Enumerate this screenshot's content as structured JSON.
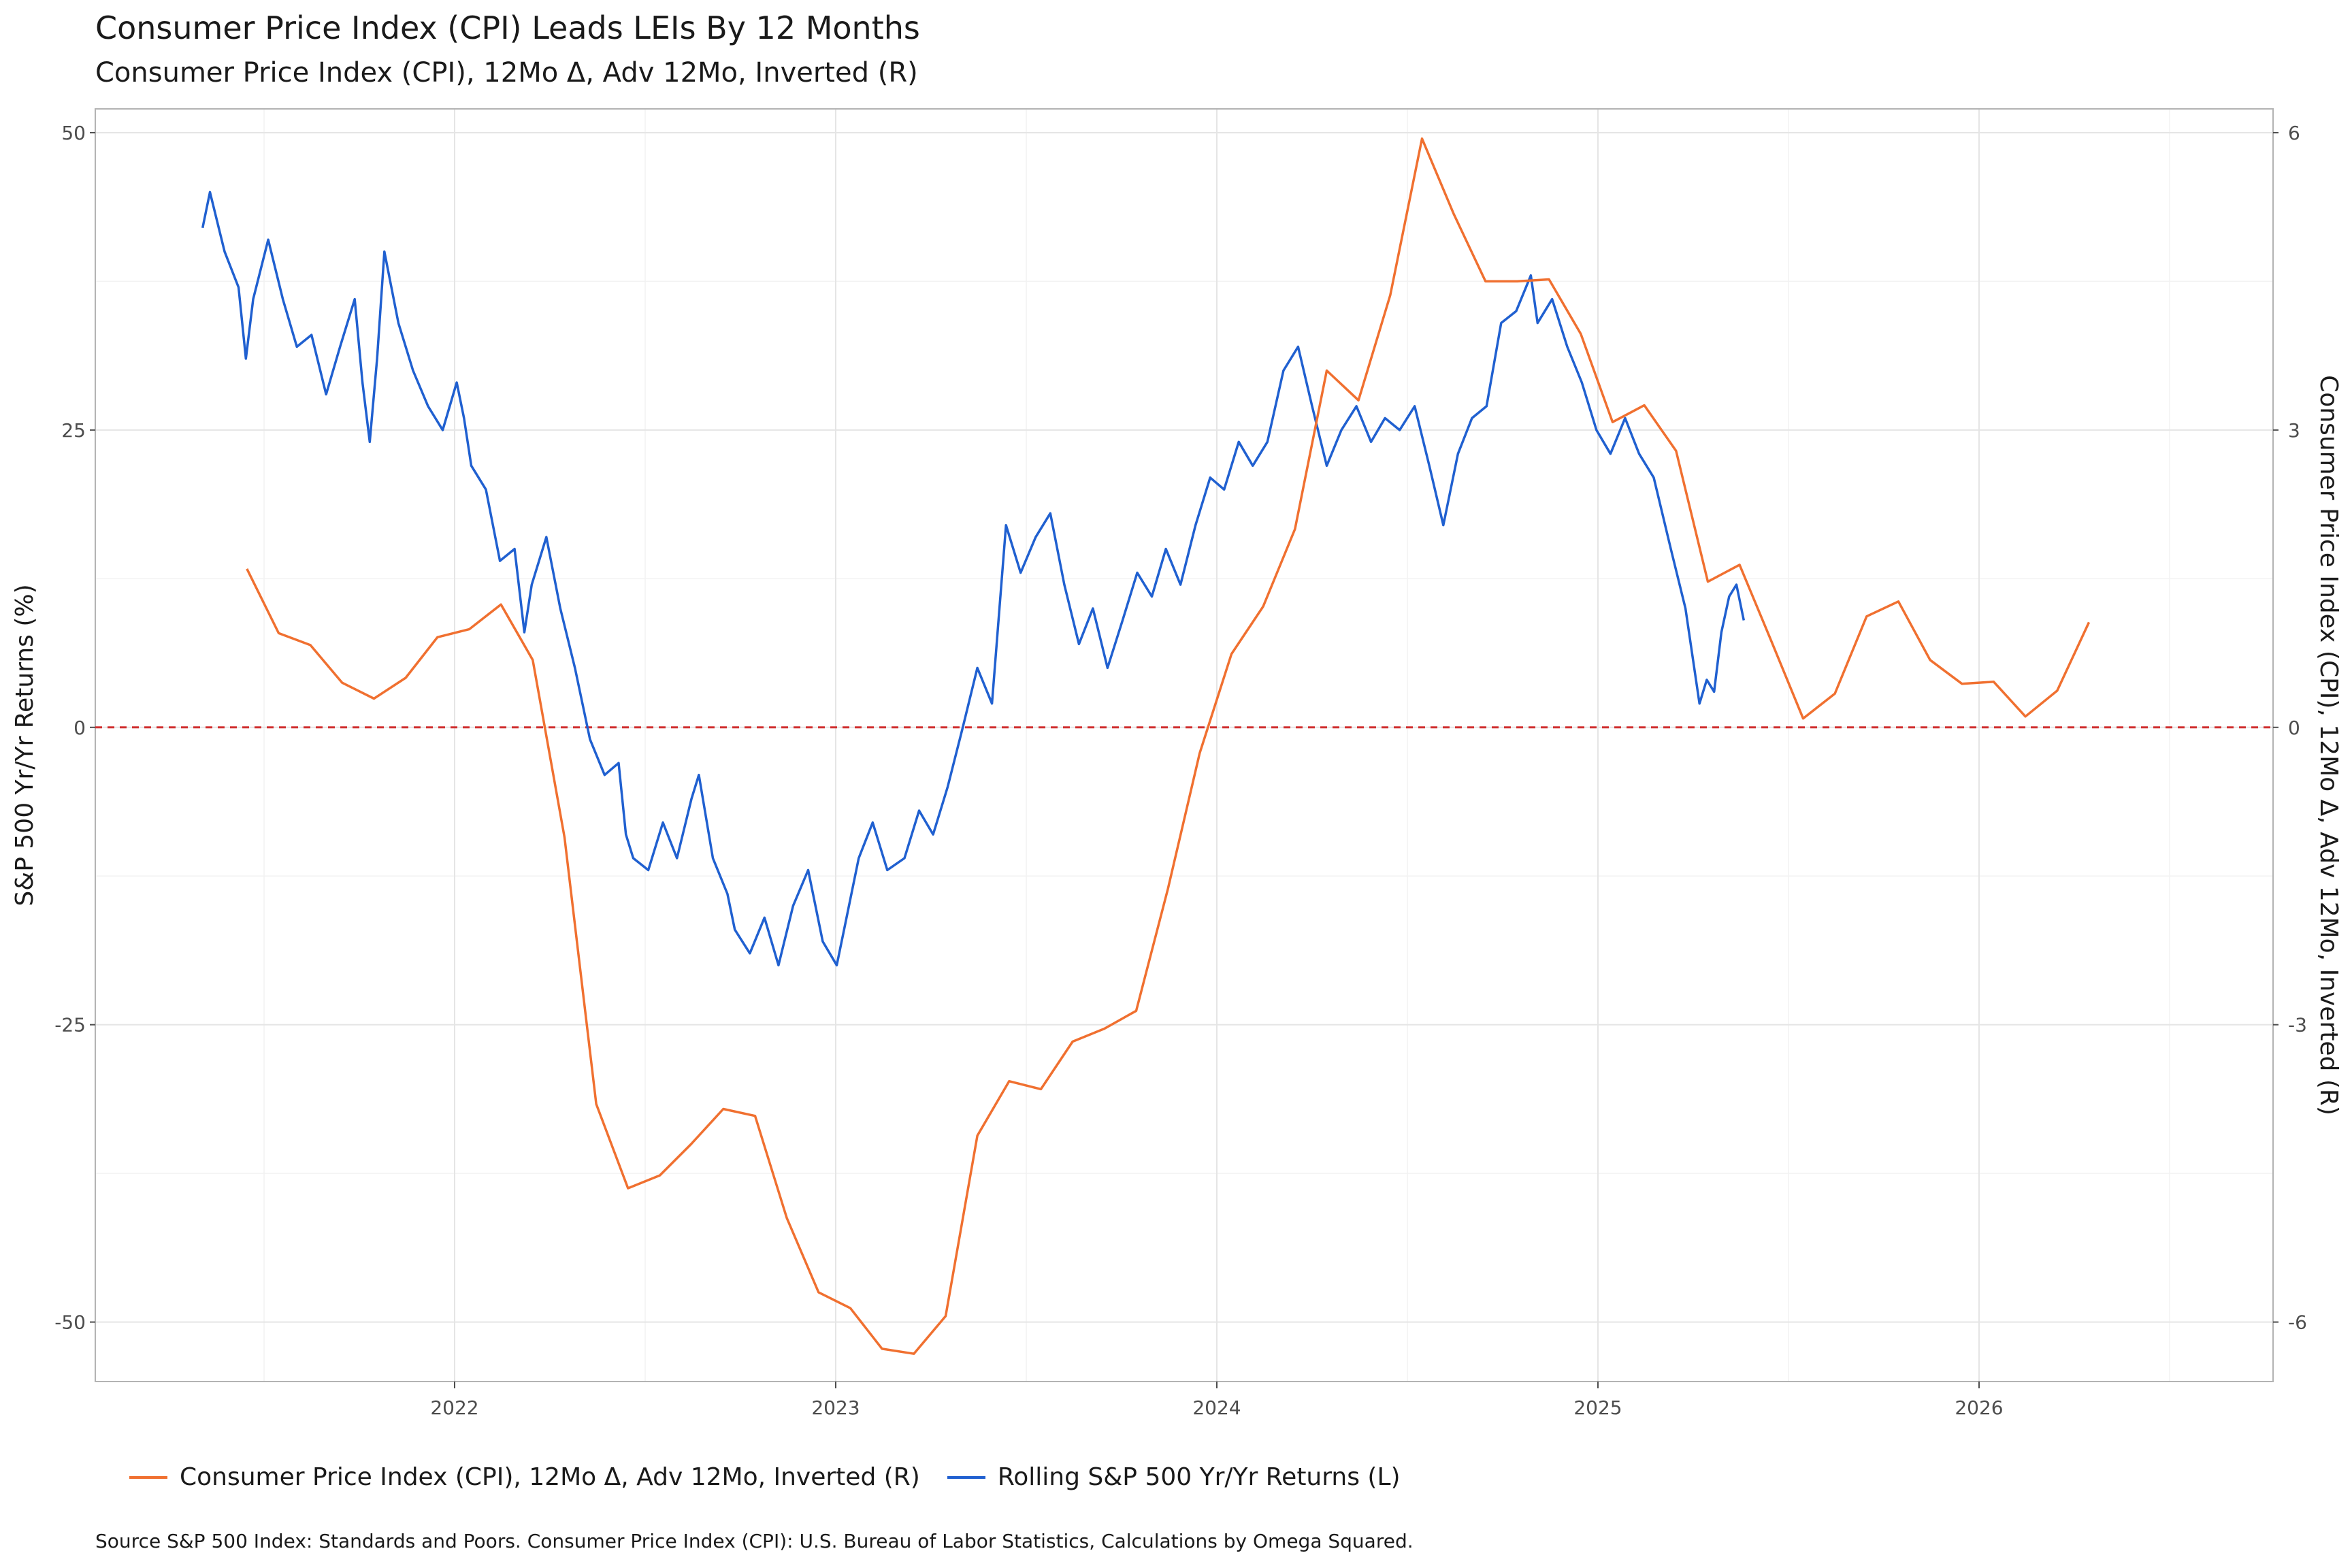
{
  "title": "Consumer Price Index (CPI)  Leads LEIs By  12  Months",
  "subtitle": "Consumer Price Index (CPI), 12Mo Δ, Adv 12Mo, Inverted (R)",
  "caption": "Source S&P 500 Index: Standards and Poors. Consumer Price Index (CPI): U.S. Bureau of Labor Statistics, Calculations by Omega Squared.",
  "legend": [
    {
      "label": "Consumer Price Index (CPI), 12Mo Δ, Adv 12Mo, Inverted (R)",
      "color": "#f07030"
    },
    {
      "label": "Rolling S&P 500 Yr/Yr Returns (L)",
      "color": "#2060d0"
    }
  ],
  "chart_data": {
    "type": "line",
    "title": "Consumer Price Index (CPI)  Leads LEIs By  12  Months",
    "subtitle": "Consumer Price Index (CPI), 12Mo Δ, Adv 12Mo, Inverted (R)",
    "ylabel_left": "S&P 500 Yr/Yr Returns (%)",
    "ylabel_right": "Consumer Price Index (CPI), 12Mo Δ, Adv 12Mo, Inverted (R)",
    "x_ticks": [
      "2022",
      "2023",
      "2024",
      "2025",
      "2026"
    ],
    "y_left_ticks": [
      "50",
      "25",
      "0",
      "-25",
      "-50"
    ],
    "y_left_lim": [
      -55,
      52
    ],
    "y_right_ticks": [
      "6",
      "3",
      "0",
      "-3",
      "-6"
    ],
    "y_right_lim": [
      -6.6,
      6.24
    ],
    "reference_line": {
      "axis": "left",
      "value": 0,
      "color": "#d03030",
      "style": "dashed"
    },
    "grid": true,
    "legend_position": "bottom",
    "series": [
      {
        "name": "Consumer Price Index (CPI), 12Mo Δ, Adv 12Mo, Inverted (R)",
        "axis": "right",
        "color": "#f07030",
        "points": [
          [
            "2021-06",
            1.6
          ],
          [
            "2021-07",
            0.95
          ],
          [
            "2021-08",
            0.83
          ],
          [
            "2021-09",
            0.45
          ],
          [
            "2021-10",
            0.29
          ],
          [
            "2021-11",
            0.5
          ],
          [
            "2021-12",
            0.91
          ],
          [
            "2022-01",
            0.99
          ],
          [
            "2022-02",
            1.24
          ],
          [
            "2022-03",
            0.68
          ],
          [
            "2022-04",
            -1.11
          ],
          [
            "2022-05",
            -3.8
          ],
          [
            "2022-06",
            -4.65
          ],
          [
            "2022-07",
            -4.52
          ],
          [
            "2022-08",
            -4.2
          ],
          [
            "2022-09",
            -3.85
          ],
          [
            "2022-10",
            -3.92
          ],
          [
            "2022-11",
            -4.95
          ],
          [
            "2022-12",
            -5.7
          ],
          [
            "2023-01",
            -5.86
          ],
          [
            "2023-02",
            -6.27
          ],
          [
            "2023-03",
            -6.32
          ],
          [
            "2023-04",
            -5.94
          ],
          [
            "2023-05",
            -4.12
          ],
          [
            "2023-06",
            -3.57
          ],
          [
            "2023-07",
            -3.65
          ],
          [
            "2023-08",
            -3.17
          ],
          [
            "2023-09",
            -3.04
          ],
          [
            "2023-10",
            -2.86
          ],
          [
            "2023-11",
            -1.63
          ],
          [
            "2023-12",
            -0.26
          ],
          [
            "2024-01",
            0.74
          ],
          [
            "2024-02",
            1.22
          ],
          [
            "2024-03",
            2.0
          ],
          [
            "2024-04",
            3.6
          ],
          [
            "2024-05",
            3.3
          ],
          [
            "2024-06",
            4.36
          ],
          [
            "2024-07",
            5.94
          ],
          [
            "2024-08",
            5.18
          ],
          [
            "2024-09",
            4.5
          ],
          [
            "2024-10",
            4.5
          ],
          [
            "2024-11",
            4.52
          ],
          [
            "2024-12",
            3.97
          ],
          [
            "2025-01",
            3.08
          ],
          [
            "2025-02",
            3.25
          ],
          [
            "2025-03",
            2.79
          ],
          [
            "2025-04",
            1.47
          ],
          [
            "2025-05",
            1.64
          ],
          [
            "2025-06",
            0.87
          ],
          [
            "2025-07",
            0.09
          ],
          [
            "2025-08",
            0.34
          ],
          [
            "2025-09",
            1.12
          ],
          [
            "2025-10",
            1.27
          ],
          [
            "2025-11",
            0.68
          ],
          [
            "2025-12",
            0.44
          ],
          [
            "2026-01",
            0.46
          ],
          [
            "2026-02",
            0.11
          ],
          [
            "2026-03",
            0.37
          ],
          [
            "2026-04",
            1.06
          ]
        ]
      },
      {
        "name": "Rolling S&P 500 Yr/Yr Returns (L)",
        "axis": "left",
        "color": "#2060d0",
        "points": [
          [
            "2021-05-03",
            42
          ],
          [
            "2021-05-10",
            45
          ],
          [
            "2021-05-24",
            40
          ],
          [
            "2021-06-07",
            37
          ],
          [
            "2021-06-14",
            31
          ],
          [
            "2021-06-21",
            36
          ],
          [
            "2021-07-05",
            41
          ],
          [
            "2021-07-19",
            36
          ],
          [
            "2021-08-02",
            32
          ],
          [
            "2021-08-16",
            33
          ],
          [
            "2021-08-30",
            28
          ],
          [
            "2021-09-13",
            32
          ],
          [
            "2021-09-27",
            36
          ],
          [
            "2021-10-04",
            29
          ],
          [
            "2021-10-11",
            24
          ],
          [
            "2021-10-18",
            31
          ],
          [
            "2021-10-25",
            40
          ],
          [
            "2021-11-08",
            34
          ],
          [
            "2021-11-22",
            30
          ],
          [
            "2021-12-06",
            27
          ],
          [
            "2021-12-20",
            25
          ],
          [
            "2022-01-03",
            29
          ],
          [
            "2022-01-10",
            26
          ],
          [
            "2022-01-17",
            22
          ],
          [
            "2022-01-31",
            20
          ],
          [
            "2022-02-14",
            14
          ],
          [
            "2022-02-28",
            15
          ],
          [
            "2022-03-07",
            8
          ],
          [
            "2022-03-14",
            12
          ],
          [
            "2022-03-28",
            16
          ],
          [
            "2022-04-11",
            10
          ],
          [
            "2022-04-25",
            5
          ],
          [
            "2022-05-09",
            -1
          ],
          [
            "2022-05-23",
            -4
          ],
          [
            "2022-06-06",
            -3
          ],
          [
            "2022-06-13",
            -9
          ],
          [
            "2022-06-20",
            -11
          ],
          [
            "2022-07-04",
            -12
          ],
          [
            "2022-07-18",
            -8
          ],
          [
            "2022-08-01",
            -11
          ],
          [
            "2022-08-15",
            -6
          ],
          [
            "2022-08-22",
            -4
          ],
          [
            "2022-09-05",
            -11
          ],
          [
            "2022-09-19",
            -14
          ],
          [
            "2022-09-26",
            -17
          ],
          [
            "2022-10-10",
            -19
          ],
          [
            "2022-10-24",
            -16
          ],
          [
            "2022-11-07",
            -20
          ],
          [
            "2022-11-21",
            -15
          ],
          [
            "2022-12-05",
            -12
          ],
          [
            "2022-12-19",
            -18
          ],
          [
            "2023-01-02",
            -20
          ],
          [
            "2023-01-09",
            -17
          ],
          [
            "2023-01-23",
            -11
          ],
          [
            "2023-02-06",
            -8
          ],
          [
            "2023-02-20",
            -12
          ],
          [
            "2023-03-06",
            -11
          ],
          [
            "2023-03-20",
            -7
          ],
          [
            "2023-04-03",
            -9
          ],
          [
            "2023-04-17",
            -5
          ],
          [
            "2023-05-01",
            0
          ],
          [
            "2023-05-15",
            5
          ],
          [
            "2023-05-29",
            2
          ],
          [
            "2023-06-12",
            17
          ],
          [
            "2023-06-26",
            13
          ],
          [
            "2023-07-10",
            16
          ],
          [
            "2023-07-24",
            18
          ],
          [
            "2023-08-07",
            12
          ],
          [
            "2023-08-21",
            7
          ],
          [
            "2023-09-04",
            10
          ],
          [
            "2023-09-18",
            5
          ],
          [
            "2023-10-02",
            9
          ],
          [
            "2023-10-16",
            13
          ],
          [
            "2023-10-30",
            11
          ],
          [
            "2023-11-13",
            15
          ],
          [
            "2023-11-27",
            12
          ],
          [
            "2023-12-11",
            17
          ],
          [
            "2023-12-25",
            21
          ],
          [
            "2024-01-08",
            20
          ],
          [
            "2024-01-22",
            24
          ],
          [
            "2024-02-05",
            22
          ],
          [
            "2024-02-19",
            24
          ],
          [
            "2024-03-04",
            30
          ],
          [
            "2024-03-18",
            32
          ],
          [
            "2024-04-01",
            27
          ],
          [
            "2024-04-15",
            22
          ],
          [
            "2024-04-29",
            25
          ],
          [
            "2024-05-13",
            27
          ],
          [
            "2024-05-27",
            24
          ],
          [
            "2024-06-10",
            26
          ],
          [
            "2024-06-24",
            25
          ],
          [
            "2024-07-08",
            27
          ],
          [
            "2024-07-22",
            22
          ],
          [
            "2024-08-05",
            17
          ],
          [
            "2024-08-19",
            23
          ],
          [
            "2024-09-02",
            26
          ],
          [
            "2024-09-16",
            27
          ],
          [
            "2024-09-30",
            34
          ],
          [
            "2024-10-14",
            35
          ],
          [
            "2024-10-28",
            38
          ],
          [
            "2024-11-04",
            34
          ],
          [
            "2024-11-18",
            36
          ],
          [
            "2024-12-02",
            32
          ],
          [
            "2024-12-16",
            29
          ],
          [
            "2024-12-30",
            25
          ],
          [
            "2025-01-13",
            23
          ],
          [
            "2025-01-27",
            26
          ],
          [
            "2025-02-10",
            23
          ],
          [
            "2025-02-24",
            21
          ],
          [
            "2025-03-10",
            15
          ],
          [
            "2025-03-24",
            10
          ],
          [
            "2025-04-07",
            2
          ],
          [
            "2025-04-14",
            4
          ],
          [
            "2025-04-21",
            3
          ],
          [
            "2025-04-28",
            8
          ],
          [
            "2025-05-05",
            11
          ],
          [
            "2025-05-12",
            12
          ],
          [
            "2025-05-19",
            9
          ]
        ]
      }
    ]
  }
}
